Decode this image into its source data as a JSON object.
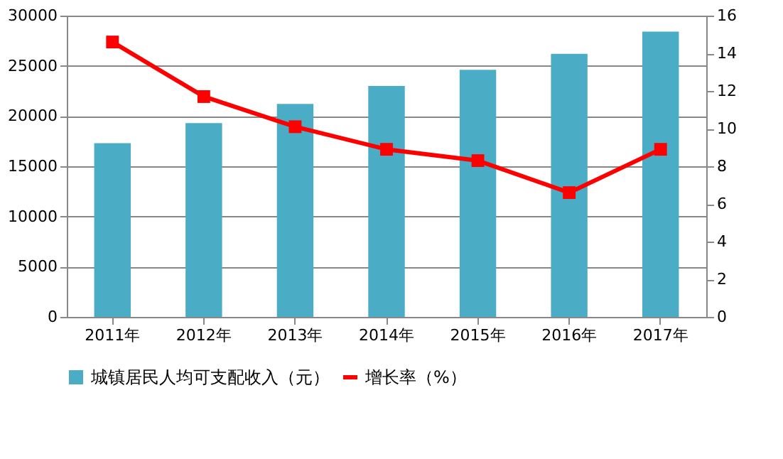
{
  "chart_data": {
    "type": "bar",
    "categories": [
      "2011年",
      "2012年",
      "2013年",
      "2014年",
      "2015年",
      "2016年",
      "2017年"
    ],
    "series": [
      {
        "name": "城镇居民人均可支配收入（元）",
        "color": "#4bacc6",
        "values": [
          17300,
          19300,
          21200,
          23000,
          24600,
          26200,
          28400
        ]
      },
      {
        "name": "增长率（%）",
        "type": "line",
        "axis": "y2",
        "color": "#ff0000",
        "marker": "square",
        "values": [
          14.6,
          11.7,
          10.1,
          8.9,
          8.3,
          6.6,
          8.9
        ]
      }
    ],
    "ylim": [
      0,
      30000
    ],
    "yticks": [
      0,
      5000,
      10000,
      15000,
      20000,
      25000,
      30000
    ],
    "y2lim": [
      0,
      16
    ],
    "y2ticks": [
      0,
      2,
      4,
      6,
      8,
      10,
      12,
      14,
      16
    ],
    "grid": "y",
    "legend": "bottom"
  }
}
